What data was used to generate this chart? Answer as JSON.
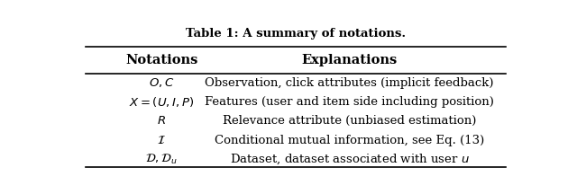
{
  "title": "Table 1: A summary of notations.",
  "col_headers": [
    "Notations",
    "Explanations"
  ],
  "rows": [
    [
      "$O, C$",
      "Observation, click attributes (implicit feedback)"
    ],
    [
      "$X = (U, I, P)$",
      "Features (user and item side including position)"
    ],
    [
      "$R$",
      "Relevance attribute (unbiased estimation)"
    ],
    [
      "$\\mathcal{I}$",
      "Conditional mutual information, see Eq. (13)"
    ],
    [
      "$\\mathcal{D}, \\mathcal{D}_u$",
      "Dataset, dataset associated with user $u$"
    ]
  ],
  "fig_width": 6.4,
  "fig_height": 2.16,
  "dpi": 100,
  "background_color": "#ffffff",
  "header_fontsize": 10.5,
  "cell_fontsize": 9.5,
  "title_fontsize": 9.5
}
